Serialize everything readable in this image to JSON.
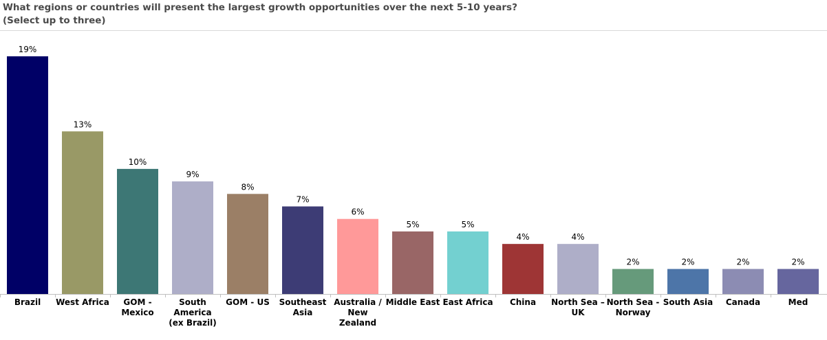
{
  "chart_data": {
    "type": "bar",
    "title_line1": "What regions or countries will present the largest growth opportunities over the next 5-10 years?",
    "title_line2": "(Select up to three)",
    "categories": [
      [
        "Brazil"
      ],
      [
        "West Africa"
      ],
      [
        "GOM -",
        "Mexico"
      ],
      [
        "South",
        "America",
        "(ex Brazil)"
      ],
      [
        "GOM - US"
      ],
      [
        "Southeast",
        "Asia"
      ],
      [
        "Australia /",
        "New",
        "Zealand"
      ],
      [
        "Middle East"
      ],
      [
        "East Africa"
      ],
      [
        "China"
      ],
      [
        "North Sea –",
        "UK"
      ],
      [
        "North Sea -",
        "Norway"
      ],
      [
        "South Asia"
      ],
      [
        "Canada"
      ],
      [
        "Med"
      ]
    ],
    "values": [
      19,
      13,
      10,
      9,
      8,
      7,
      6,
      5,
      5,
      4,
      4,
      2,
      2,
      2,
      2
    ],
    "value_labels": [
      "19%",
      "13%",
      "10%",
      "9%",
      "8%",
      "7%",
      "6%",
      "5%",
      "5%",
      "4%",
      "4%",
      "2%",
      "2%",
      "2%",
      "2%"
    ],
    "colors": [
      "#000066",
      "#999966",
      "#3d7775",
      "#aeaec8",
      "#9b7f66",
      "#3d3c75",
      "#ff9999",
      "#996666",
      "#73d0d0",
      "#9e3535",
      "#aeaec8",
      "#669a7b",
      "#4d75a8",
      "#8c8cb3",
      "#66669e"
    ],
    "ylim": [
      0,
      20
    ],
    "grid": false,
    "legend": "none"
  }
}
